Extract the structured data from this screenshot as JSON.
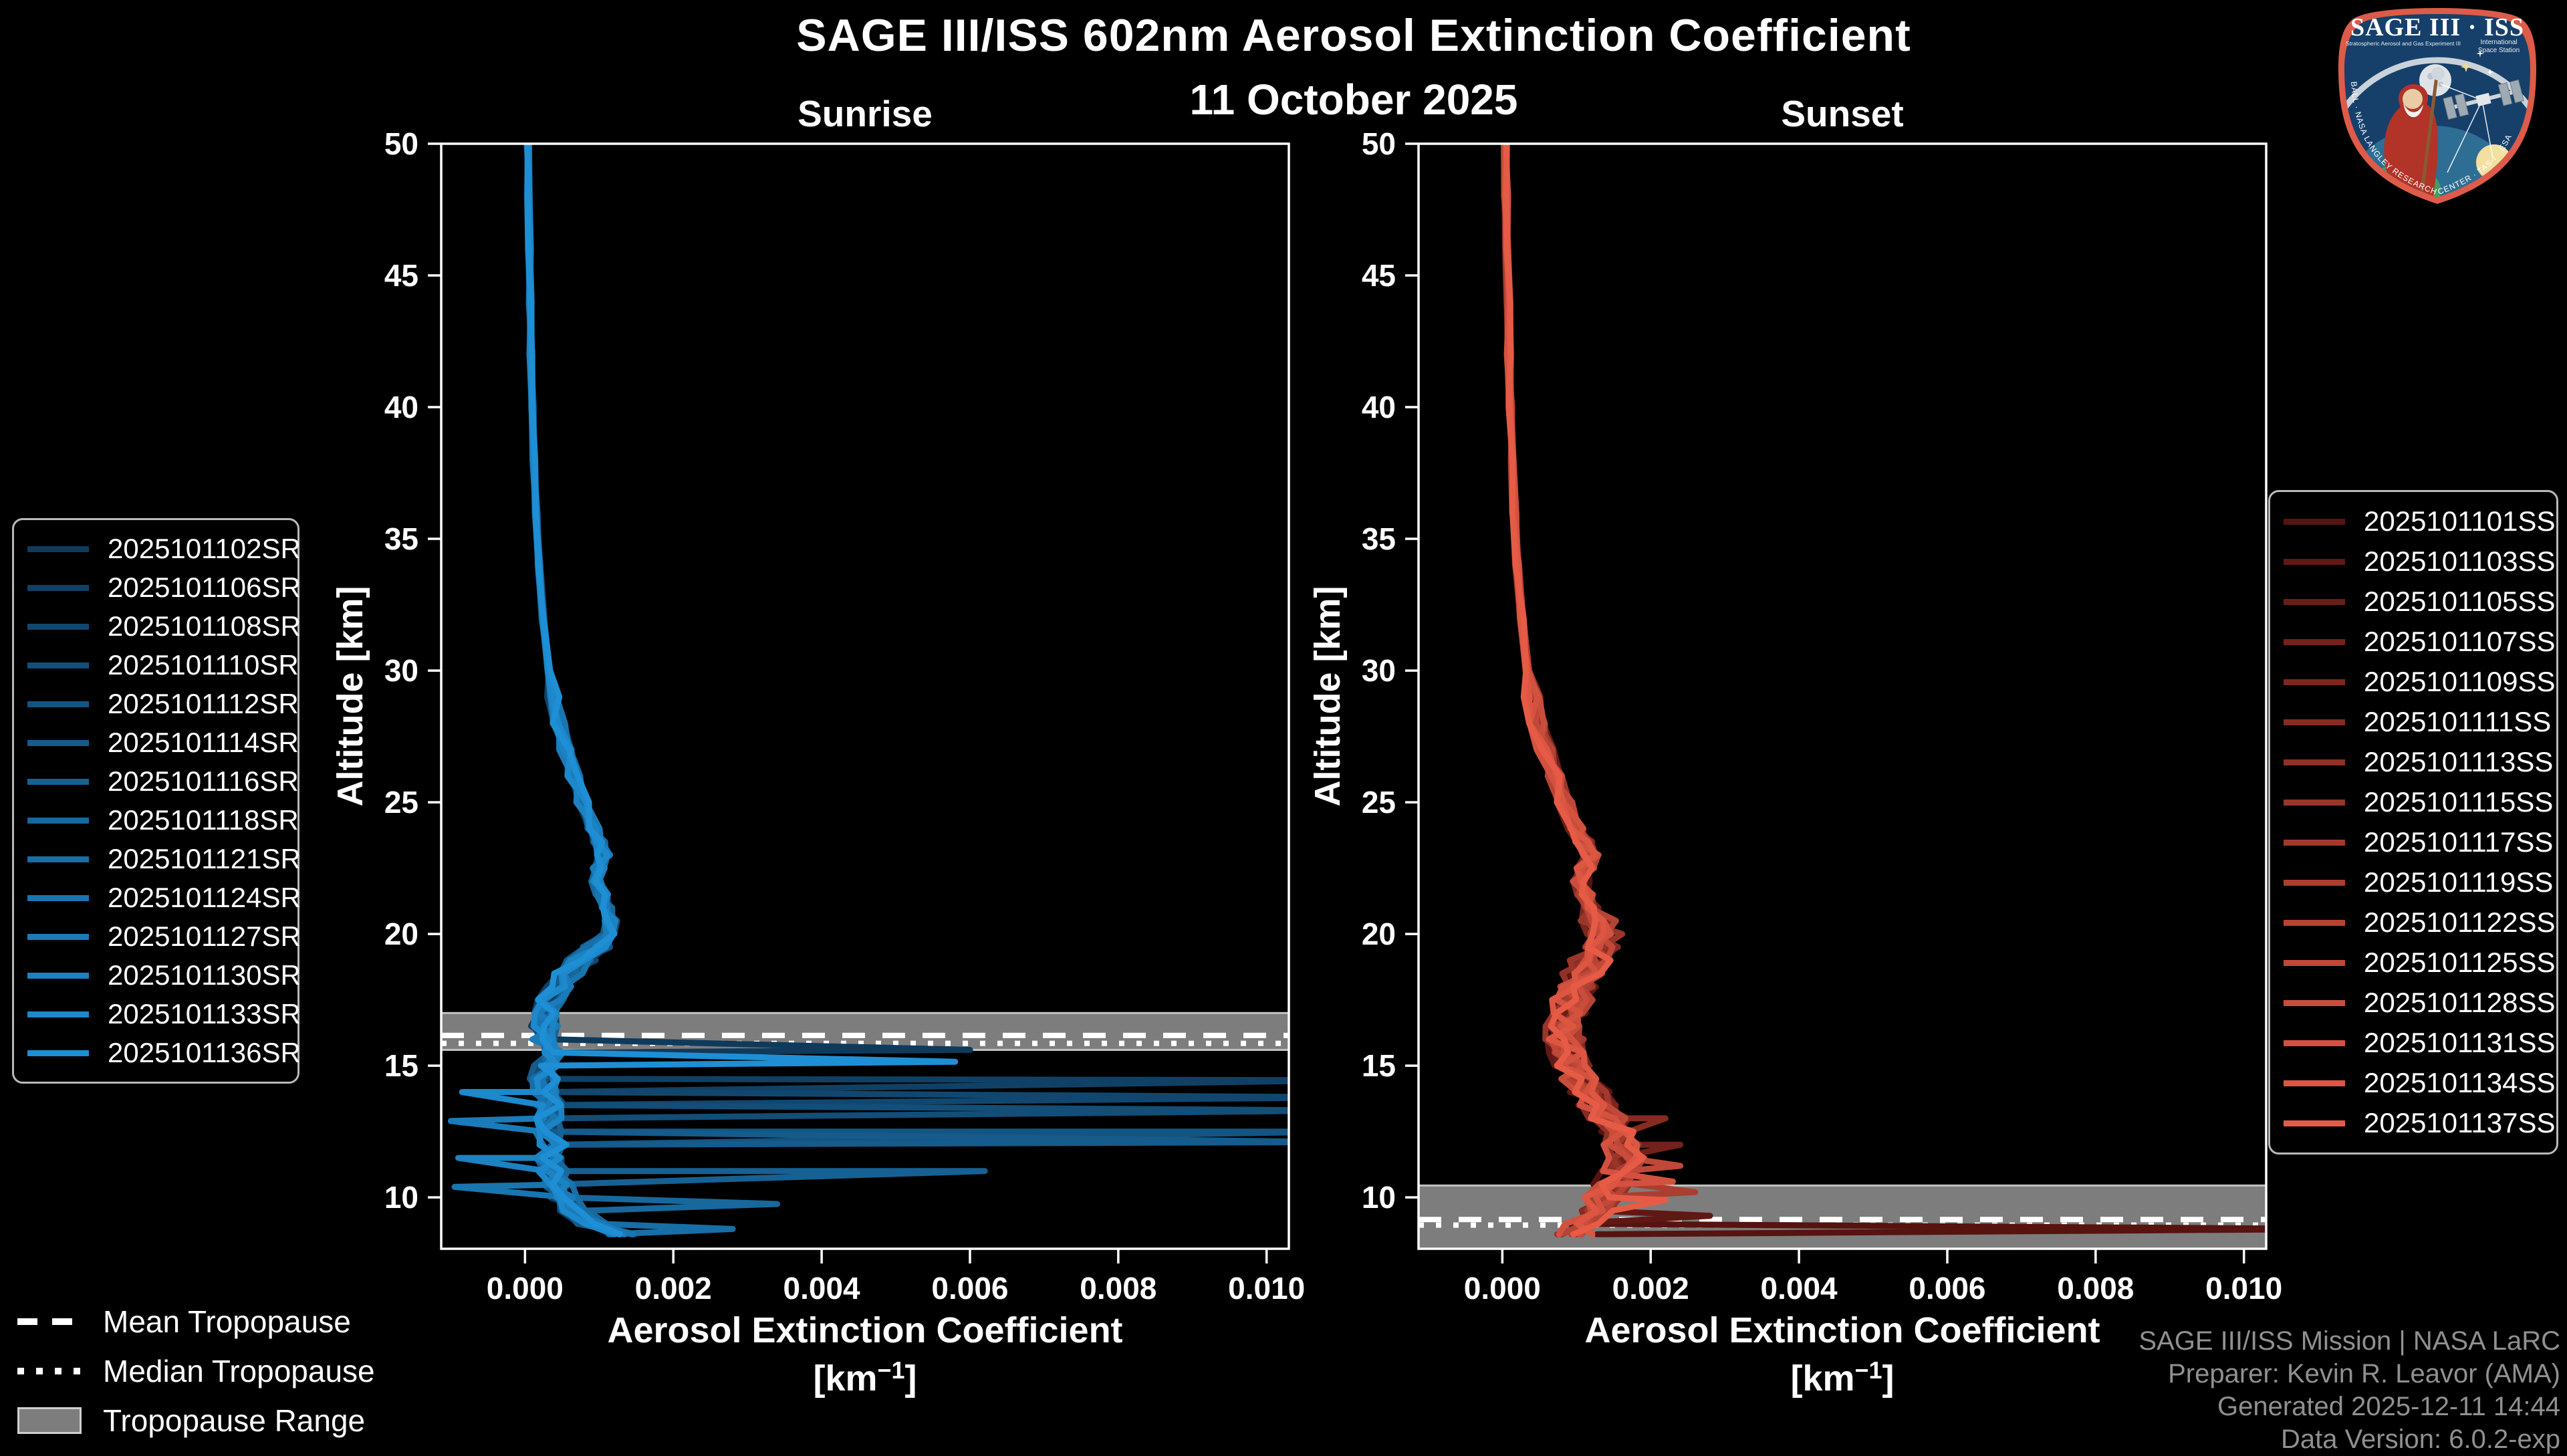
{
  "header": {
    "title": "SAGE III/ISS 602nm Aerosol Extinction Coefficient",
    "date": "11 October 2025"
  },
  "chart_data": {
    "type": "line",
    "xlabel": "Aerosol Extinction Coefficient",
    "xunit_base": "[km",
    "xunit_sup": "−1",
    "xunit_close": "]",
    "ylabel": "Altitude [km]",
    "xlim": [
      -0.00113,
      0.0103
    ],
    "ylim": [
      8.05,
      50
    ],
    "xtick_values": [
      0.0,
      0.002,
      0.004,
      0.006,
      0.008,
      0.01
    ],
    "xtick_labels": [
      "0.000",
      "0.002",
      "0.004",
      "0.006",
      "0.008",
      "0.010"
    ],
    "ytick_values": [
      10,
      15,
      20,
      25,
      30,
      35,
      40,
      45,
      50
    ],
    "grid": false,
    "background": "#000000",
    "frame_color": "#ffffff",
    "tropopause_band_color": "#7d7d7d",
    "tropopause_band_edge_color": "#c2c2c2",
    "panels": [
      {
        "id": "sunrise",
        "title": "Sunrise",
        "color_start": "#0f3a5c",
        "color_end": "#1e8fd5",
        "tropopause": {
          "mean_km": 16.15,
          "median_km": 16.0,
          "range_km": [
            15.6,
            17.0
          ]
        },
        "jitter": {
          "amp_upper": 2e-05,
          "amp_mid": 9e-05,
          "amp_lower": 0.0002,
          "mid_threshold_km": 20
        },
        "base_profile": {
          "alt_km": [
            50,
            48,
            46,
            44,
            42,
            40,
            38,
            36,
            34,
            32,
            30,
            29,
            28,
            27,
            26,
            25,
            24,
            23.5,
            23,
            22.5,
            22,
            21.5,
            21,
            20.5,
            20,
            19.5,
            19,
            18.5,
            18,
            17.5,
            17,
            16.5,
            16,
            15.5,
            15,
            14.5,
            14,
            13.5,
            13,
            12.5,
            12,
            11.5,
            11,
            10.5,
            10,
            9.5,
            9,
            8.6
          ],
          "extinction": [
            4e-05,
            5e-05,
            6e-05,
            7e-05,
            8e-05,
            0.0001,
            0.00012,
            0.00015,
            0.00019,
            0.00024,
            0.00032,
            0.00038,
            0.00045,
            0.00055,
            0.00066,
            0.00078,
            0.00092,
            0.001,
            0.00106,
            0.001,
            0.00096,
            0.00104,
            0.0011,
            0.00116,
            0.00112,
            0.00096,
            0.00076,
            0.00058,
            0.00044,
            0.00034,
            0.00028,
            0.00026,
            0.00028,
            0.00032,
            0.0003,
            0.00026,
            0.0003,
            0.00034,
            0.0003,
            0.00034,
            0.00038,
            0.00034,
            0.00038,
            0.00044,
            0.00052,
            0.00066,
            0.0009,
            0.0013
          ]
        },
        "series": [
          {
            "name": "2025101102SR",
            "spikes": [
              [
                15.6,
                0.006
              ]
            ]
          },
          {
            "name": "2025101106SR",
            "spikes": [
              [
                14.45,
                0.0112
              ]
            ]
          },
          {
            "name": "2025101108SR",
            "spikes": [
              [
                13.8,
                0.0112
              ]
            ]
          },
          {
            "name": "2025101110SR",
            "spikes": [
              [
                13.3,
                0.0111
              ]
            ]
          },
          {
            "name": "2025101112SR",
            "spikes": [
              [
                12.5,
                0.011
              ]
            ]
          },
          {
            "name": "2025101114SR",
            "spikes": [
              [
                12.1,
                0.0109
              ]
            ]
          },
          {
            "name": "2025101116SR",
            "spikes": [
              [
                11.0,
                0.0062
              ]
            ]
          },
          {
            "name": "2025101118SR",
            "spikes": [
              [
                9.75,
                0.0034
              ]
            ]
          },
          {
            "name": "2025101121SR",
            "spikes": [
              [
                8.8,
                0.0028
              ]
            ]
          },
          {
            "name": "2025101124SR",
            "spikes": [
              [
                10.4,
                -0.00095
              ]
            ]
          },
          {
            "name": "2025101127SR",
            "spikes": [
              [
                12.9,
                -0.001
              ]
            ]
          },
          {
            "name": "2025101130SR",
            "spikes": [
              [
                11.5,
                -0.0009
              ]
            ]
          },
          {
            "name": "2025101133SR",
            "spikes": [
              [
                14.0,
                -0.00085
              ]
            ]
          },
          {
            "name": "2025101136SR",
            "spikes": [
              [
                15.15,
                0.0058
              ]
            ]
          }
        ]
      },
      {
        "id": "sunset",
        "title": "Sunset",
        "color_start": "#561310",
        "color_end": "#e65b46",
        "tropopause": {
          "mean_km": 9.16,
          "median_km": 9.1,
          "range_km": [
            8.0,
            10.45
          ]
        },
        "jitter": {
          "amp_upper": 3e-05,
          "amp_mid": 0.00012,
          "amp_lower": 0.00028,
          "mid_threshold_km": 21
        },
        "base_profile": {
          "alt_km": [
            50,
            48,
            46,
            44,
            42,
            40,
            38,
            36,
            34,
            32,
            30,
            29,
            28,
            27,
            26,
            25,
            24,
            23.5,
            23,
            22.5,
            22,
            21.5,
            21,
            20.5,
            20,
            19.5,
            19,
            18.5,
            18,
            17.5,
            17,
            16.5,
            16,
            15.5,
            15,
            14.5,
            14,
            13.5,
            13,
            12.5,
            12,
            11.5,
            11,
            10.5,
            10,
            9.5,
            9,
            8.6
          ],
          "extinction": [
            4e-05,
            5e-05,
            6e-05,
            8e-05,
            9e-05,
            0.00011,
            0.00013,
            0.00016,
            0.0002,
            0.00026,
            0.00034,
            0.0004,
            0.00048,
            0.00058,
            0.0007,
            0.00084,
            0.001,
            0.0011,
            0.00118,
            0.00112,
            0.00106,
            0.00112,
            0.0012,
            0.00128,
            0.00134,
            0.00128,
            0.00118,
            0.00108,
            0.001,
            0.00094,
            0.0009,
            0.00086,
            0.00084,
            0.00088,
            0.00096,
            0.00106,
            0.00118,
            0.0013,
            0.00142,
            0.00152,
            0.0016,
            0.00164,
            0.0016,
            0.0015,
            0.00138,
            0.00126,
            0.00112,
            0.001
          ]
        },
        "series": [
          {
            "name": "2025101101SS",
            "spikes": [
              [
                8.8,
                0.0113
              ]
            ]
          },
          {
            "name": "2025101103SS",
            "spikes": [
              [
                9.3,
                0.0028
              ]
            ]
          },
          {
            "name": "2025101105SS",
            "spikes": []
          },
          {
            "name": "2025101107SS",
            "spikes": [
              [
                12.0,
                0.0024
              ]
            ]
          },
          {
            "name": "2025101109SS",
            "spikes": []
          },
          {
            "name": "2025101111SS",
            "spikes": [
              [
                13.0,
                0.0022
              ]
            ]
          },
          {
            "name": "2025101113SS",
            "spikes": []
          },
          {
            "name": "2025101115SS",
            "spikes": []
          },
          {
            "name": "2025101117SS",
            "spikes": []
          },
          {
            "name": "2025101119SS",
            "spikes": [
              [
                10.2,
                0.0026
              ]
            ]
          },
          {
            "name": "2025101122SS",
            "spikes": []
          },
          {
            "name": "2025101125SS",
            "spikes": [
              [
                11.2,
                0.0024
              ]
            ]
          },
          {
            "name": "2025101128SS",
            "spikes": []
          },
          {
            "name": "2025101131SS",
            "spikes": [
              [
                10.6,
                0.0023
              ]
            ]
          },
          {
            "name": "2025101134SS",
            "spikes": []
          },
          {
            "name": "2025101137SS",
            "spikes": [
              [
                9.9,
                0.0022
              ]
            ]
          }
        ]
      }
    ]
  },
  "tropopause_legend": {
    "mean": {
      "label": "Mean Tropopause"
    },
    "median": {
      "label": "Median Tropopause"
    },
    "range": {
      "label": "Tropopause Range"
    }
  },
  "credits": {
    "mission": "SAGE III/ISS Mission | NASA LaRC",
    "preparer": "Preparer: Kevin R. Leavor (AMA)",
    "generated": "Generated 2025-12-11 14:44",
    "version": "Data Version: 6.0.2-exp"
  },
  "logo": {
    "title": "SAGE III · ISS",
    "subtitle_left": "Stratospheric Aerosol and Gas Experiment III",
    "subtitle_right_1": "International",
    "subtitle_right_2": "Space Station",
    "rim_text": "BALL · NASA LANGLEY RESEARCH CENTER · TAS-I · ESA"
  }
}
